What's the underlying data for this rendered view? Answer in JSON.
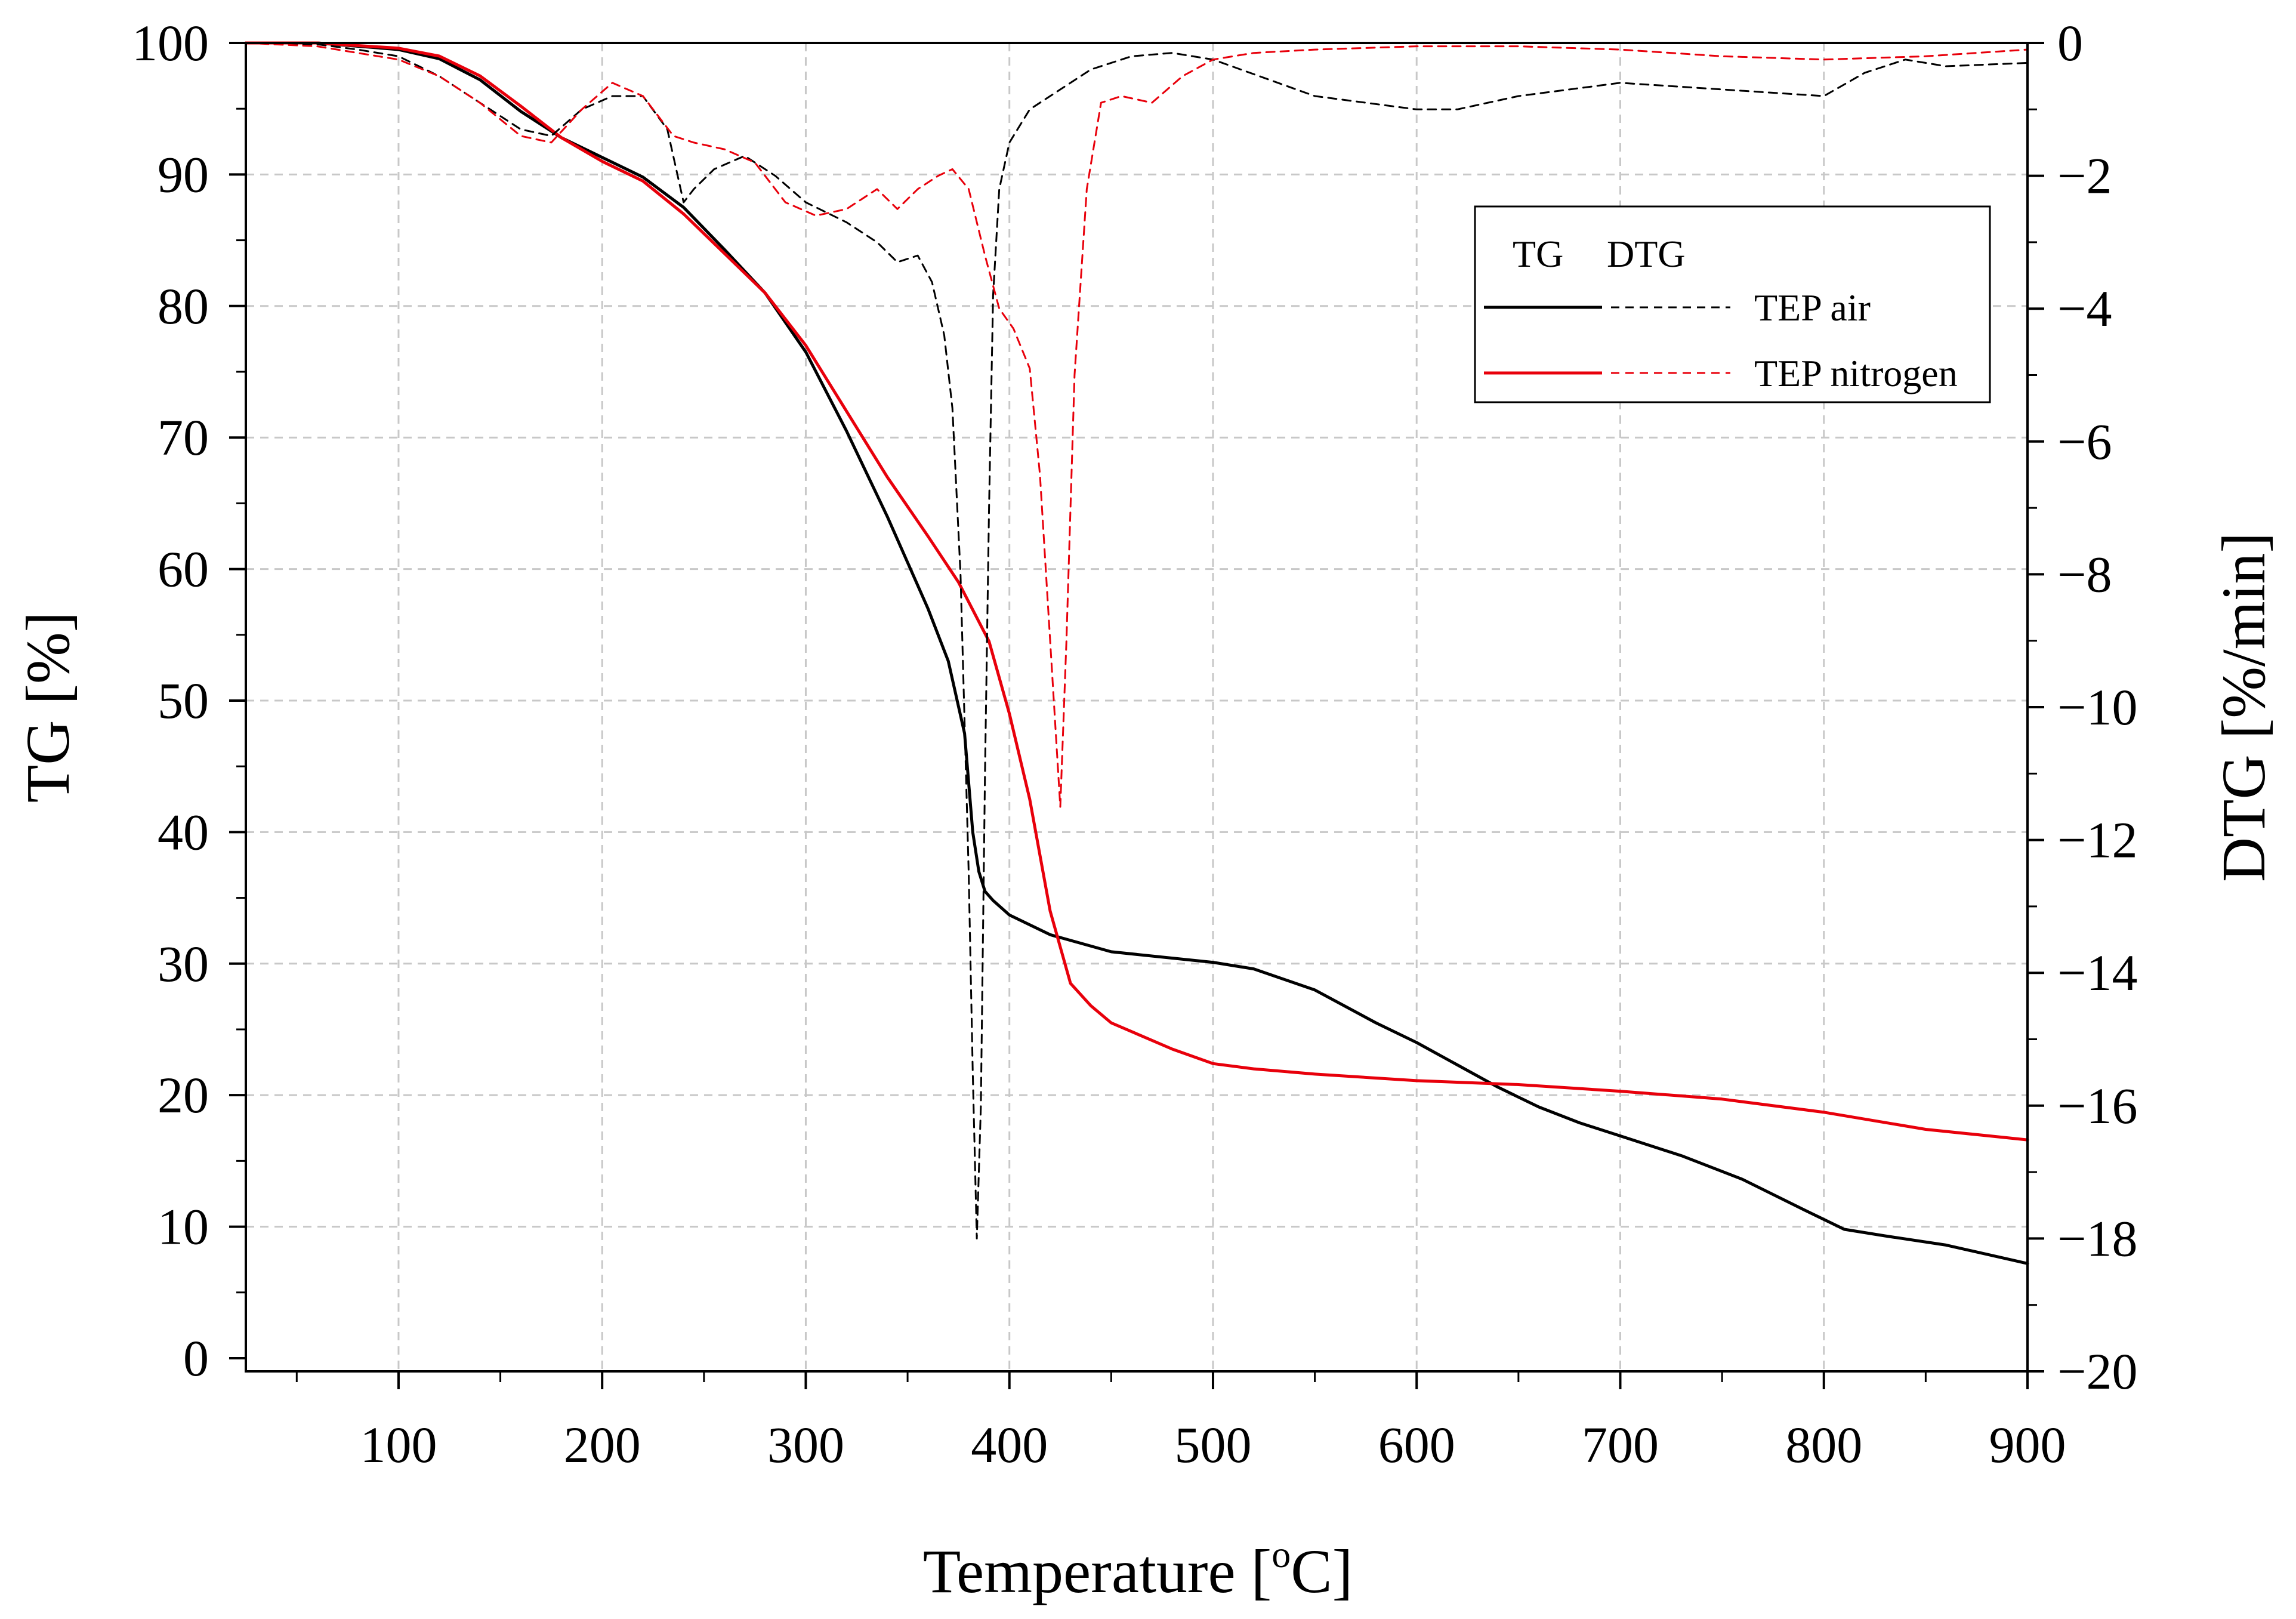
{
  "chart_data": {
    "type": "line",
    "title": "",
    "xlabel": "Temperature [",
    "xlabel_sup": "o",
    "xlabel_unit": "C]",
    "ylabel_left": "TG [%]",
    "ylabel_right": "DTG [%/min]",
    "xlim": [
      25,
      900
    ],
    "ylim_left": [
      -1,
      100
    ],
    "ylim_right": [
      -20,
      0
    ],
    "x_ticks": [
      100,
      200,
      300,
      400,
      500,
      600,
      700,
      800,
      900
    ],
    "y_left_ticks": [
      0,
      10,
      20,
      30,
      40,
      50,
      60,
      70,
      80,
      90,
      100
    ],
    "y_right_ticks": [
      0,
      -2,
      -4,
      -6,
      -8,
      -10,
      -12,
      -14,
      -16,
      -18,
      -20
    ],
    "y_right_tick_labels": [
      "0",
      "−2",
      "−4",
      "−6",
      "−8",
      "−10",
      "−12",
      "−14",
      "−16",
      "−18",
      "−20"
    ],
    "grid": true,
    "legend": {
      "position": "top-right",
      "header_tg": "TG",
      "header_dtg": "DTG",
      "entries": [
        "TEP air",
        "TEP nitrogen"
      ]
    },
    "series": [
      {
        "name": "TEP air",
        "kind": "TG",
        "axis": "left",
        "color": "#000000",
        "dash": "solid",
        "x": [
          25,
          60,
          100,
          120,
          140,
          160,
          180,
          200,
          220,
          240,
          260,
          280,
          300,
          320,
          340,
          360,
          370,
          378,
          382,
          385,
          388,
          392,
          400,
          420,
          450,
          500,
          520,
          550,
          580,
          600,
          620,
          640,
          660,
          680,
          700,
          730,
          760,
          790,
          810,
          830,
          860,
          880,
          900
        ],
        "y": [
          100,
          100,
          99.5,
          98.8,
          97.2,
          94.8,
          92.8,
          91.3,
          89.8,
          87.5,
          84.3,
          81.0,
          76.5,
          70.5,
          64.0,
          57.0,
          53.0,
          47.5,
          40.0,
          37.0,
          35.5,
          34.8,
          33.7,
          32.2,
          30.9,
          30.1,
          29.6,
          28.0,
          25.5,
          24.0,
          22.3,
          20.6,
          19.1,
          17.9,
          16.9,
          15.4,
          13.6,
          11.3,
          9.8,
          9.3,
          8.6,
          7.9,
          7.2
        ]
      },
      {
        "name": "TEP nitrogen",
        "kind": "TG",
        "axis": "left",
        "color": "#e8000b",
        "dash": "solid",
        "x": [
          25,
          60,
          100,
          120,
          140,
          160,
          180,
          200,
          220,
          240,
          260,
          280,
          300,
          320,
          340,
          360,
          375,
          390,
          400,
          410,
          420,
          430,
          440,
          450,
          480,
          500,
          520,
          550,
          600,
          650,
          700,
          750,
          800,
          850,
          900
        ],
        "y": [
          100,
          100,
          99.6,
          99.0,
          97.5,
          95.2,
          92.8,
          91.0,
          89.5,
          87.0,
          84.0,
          81.0,
          77.0,
          72.0,
          67.0,
          62.5,
          59.0,
          54.5,
          49.0,
          42.5,
          34.0,
          28.5,
          26.8,
          25.5,
          23.5,
          22.4,
          22.0,
          21.6,
          21.1,
          20.8,
          20.3,
          19.7,
          18.7,
          17.4,
          16.6
        ]
      },
      {
        "name": "TEP air",
        "kind": "DTG",
        "axis": "right",
        "color": "#000000",
        "dash": "dashed",
        "x": [
          25,
          60,
          80,
          100,
          120,
          140,
          160,
          175,
          190,
          205,
          220,
          232,
          240,
          245,
          255,
          270,
          285,
          300,
          320,
          335,
          345,
          355,
          362,
          368,
          372,
          376,
          380,
          382,
          384,
          386,
          388,
          390,
          392,
          395,
          400,
          410,
          420,
          440,
          460,
          480,
          500,
          550,
          600,
          620,
          650,
          700,
          750,
          800,
          820,
          840,
          860,
          900
        ],
        "y": [
          0,
          -0.02,
          -0.1,
          -0.2,
          -0.5,
          -0.9,
          -1.3,
          -1.4,
          -1.0,
          -0.8,
          -0.8,
          -1.3,
          -2.4,
          -2.2,
          -1.9,
          -1.7,
          -2.0,
          -2.4,
          -2.7,
          -3.0,
          -3.3,
          -3.2,
          -3.6,
          -4.4,
          -5.5,
          -8.0,
          -12.5,
          -15.5,
          -18.0,
          -16.0,
          -11.0,
          -7.0,
          -3.8,
          -2.2,
          -1.5,
          -1.0,
          -0.8,
          -0.4,
          -0.2,
          -0.15,
          -0.25,
          -0.8,
          -1.0,
          -1.0,
          -0.8,
          -0.6,
          -0.7,
          -0.8,
          -0.45,
          -0.25,
          -0.35,
          -0.3
        ]
      },
      {
        "name": "TEP nitrogen",
        "kind": "DTG",
        "axis": "right",
        "color": "#e8000b",
        "dash": "dashed",
        "x": [
          25,
          60,
          100,
          120,
          140,
          160,
          175,
          190,
          205,
          220,
          235,
          245,
          260,
          275,
          290,
          305,
          320,
          335,
          345,
          355,
          365,
          372,
          380,
          388,
          395,
          402,
          410,
          415,
          420,
          425,
          428,
          432,
          438,
          445,
          455,
          470,
          485,
          500,
          520,
          550,
          600,
          650,
          700,
          750,
          800,
          850,
          900
        ],
        "y": [
          0,
          -0.05,
          -0.25,
          -0.5,
          -0.9,
          -1.4,
          -1.5,
          -1.0,
          -0.6,
          -0.8,
          -1.4,
          -1.5,
          -1.6,
          -1.8,
          -2.4,
          -2.6,
          -2.5,
          -2.2,
          -2.5,
          -2.2,
          -2.0,
          -1.9,
          -2.2,
          -3.2,
          -4.0,
          -4.3,
          -4.9,
          -6.5,
          -9.0,
          -11.5,
          -9.0,
          -5.0,
          -2.2,
          -0.9,
          -0.8,
          -0.9,
          -0.5,
          -0.25,
          -0.15,
          -0.1,
          -0.05,
          -0.05,
          -0.1,
          -0.2,
          -0.25,
          -0.2,
          -0.1
        ]
      }
    ]
  }
}
